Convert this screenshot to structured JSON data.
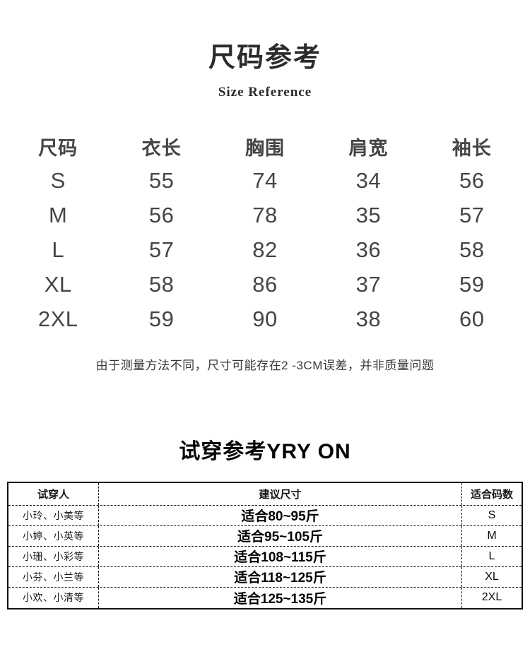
{
  "section1": {
    "title": "尺码参考",
    "subtitle": "Size Reference",
    "note": "由于测量方法不同，尺寸可能存在2 -3CM误差，并非质量问题"
  },
  "size_table": {
    "headers": [
      "尺码",
      "衣长",
      "胸围",
      "肩宽",
      "袖长"
    ],
    "rows": [
      [
        "S",
        "55",
        "74",
        "34",
        "56"
      ],
      [
        "M",
        "56",
        "78",
        "35",
        "57"
      ],
      [
        "L",
        "57",
        "82",
        "36",
        "58"
      ],
      [
        "XL",
        "58",
        "86",
        "37",
        "59"
      ],
      [
        "2XL",
        "59",
        "90",
        "38",
        "60"
      ]
    ]
  },
  "section2": {
    "title": "试穿参考YRY ON"
  },
  "fit_table": {
    "headers": [
      "试穿人",
      "建议尺寸",
      "适合码数"
    ],
    "rows": [
      {
        "person": "小玲、小美等",
        "suggestion": "适合80~95斤",
        "size": "S"
      },
      {
        "person": "小婷、小英等",
        "suggestion": "适合95~105斤",
        "size": "M"
      },
      {
        "person": "小珊、小彩等",
        "suggestion": "适合108~115斤",
        "size": "L"
      },
      {
        "person": "小芬、小兰等",
        "suggestion": "适合118~125斤",
        "size": "XL"
      },
      {
        "person": "小欢、小清等",
        "suggestion": "适合125~135斤",
        "size": "2XL"
      }
    ]
  },
  "colors": {
    "size_table_text": "#454545",
    "title_text": "#2b2b2b",
    "fit_table_text": "#111111",
    "background": "#ffffff"
  }
}
